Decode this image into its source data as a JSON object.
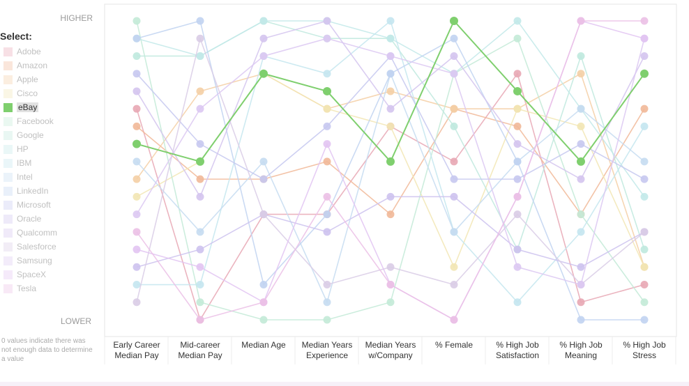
{
  "sidebar": {
    "title": "Select:"
  },
  "scale": {
    "top_label": "HIGHER",
    "bottom_label": "LOWER"
  },
  "footnote": "0 values indicate there was not enough data to determine a value",
  "selected_company": "eBay",
  "chart_data": {
    "type": "parallel-coordinates",
    "ranking": "rank within each metric: 1 = highest",
    "axes": [
      [
        "Early Career",
        "Median Pay"
      ],
      [
        "Mid-career",
        "Median Pay"
      ],
      [
        "Median Age"
      ],
      [
        "Median Years",
        "Experience"
      ],
      [
        "Median Years",
        "w/Company"
      ],
      [
        "% Female"
      ],
      [
        "% High Job",
        "Satisfaction"
      ],
      [
        "% High Job",
        "Meaning"
      ],
      [
        "% High Job",
        "Stress"
      ]
    ],
    "series": [
      {
        "name": "Adobe",
        "color": "#e8a7b4",
        "ranks": [
          6,
          18,
          12,
          12,
          7,
          9,
          4,
          17,
          16
        ]
      },
      {
        "name": "Amazon",
        "color": "#f1b898",
        "ranks": [
          7,
          10,
          10,
          9,
          12,
          6,
          7,
          12,
          6
        ]
      },
      {
        "name": "Apple",
        "color": "#f4cfa5",
        "ranks": [
          10,
          5,
          4,
          6,
          5,
          6,
          6,
          4,
          15
        ]
      },
      {
        "name": "Cisco",
        "color": "#f2e6b4",
        "ranks": [
          11,
          9,
          4,
          6,
          7,
          15,
          6,
          7,
          15
        ]
      },
      {
        "name": "eBay",
        "color": "#7fcf6e",
        "ranks": [
          8,
          9,
          4,
          5,
          9,
          1,
          5,
          9,
          4
        ]
      },
      {
        "name": "Facebook",
        "color": "#c3ead7",
        "ranks": [
          1,
          17,
          18,
          18,
          17,
          4,
          2,
          12,
          17
        ]
      },
      {
        "name": "Google",
        "color": "#bfe9de",
        "ranks": [
          3,
          3,
          1,
          2,
          2,
          7,
          14,
          3,
          14
        ]
      },
      {
        "name": "HP",
        "color": "#c2e9e9",
        "ranks": [
          2,
          3,
          1,
          1,
          2,
          4,
          1,
          6,
          11
        ]
      },
      {
        "name": "IBM",
        "color": "#c4e6ef",
        "ranks": [
          16,
          16,
          3,
          4,
          1,
          13,
          17,
          13,
          7
        ]
      },
      {
        "name": "Intel",
        "color": "#c5dcf1",
        "ranks": [
          9,
          13,
          9,
          17,
          4,
          13,
          9,
          6,
          9
        ]
      },
      {
        "name": "LinkedIn",
        "color": "#c1d3f1",
        "ranks": [
          2,
          1,
          16,
          12,
          4,
          2,
          9,
          18,
          18
        ]
      },
      {
        "name": "Microsoft",
        "color": "#c6c8f0",
        "ranks": [
          4,
          8,
          10,
          7,
          3,
          10,
          10,
          8,
          10
        ]
      },
      {
        "name": "Oracle",
        "color": "#cdc2ee",
        "ranks": [
          15,
          14,
          12,
          13,
          11,
          11,
          14,
          15,
          13
        ]
      },
      {
        "name": "Qualcomm",
        "color": "#d4c4ee",
        "ranks": [
          5,
          11,
          2,
          1,
          6,
          3,
          8,
          10,
          3
        ]
      },
      {
        "name": "Salesforce",
        "color": "#d9cce6",
        "ranks": [
          17,
          2,
          12,
          16,
          15,
          16,
          12,
          16,
          13
        ]
      },
      {
        "name": "Samsung",
        "color": "#dcc8f2",
        "ranks": [
          12,
          6,
          3,
          2,
          3,
          4,
          15,
          16,
          2
        ]
      },
      {
        "name": "SpaceX",
        "color": "#e2c4f2",
        "ranks": [
          14,
          15,
          17,
          8,
          16,
          18,
          11,
          1,
          2
        ]
      },
      {
        "name": "Tesla",
        "color": "#ebc0e6",
        "ranks": [
          13,
          18,
          17,
          11,
          16,
          18,
          11,
          1,
          1
        ]
      }
    ]
  }
}
